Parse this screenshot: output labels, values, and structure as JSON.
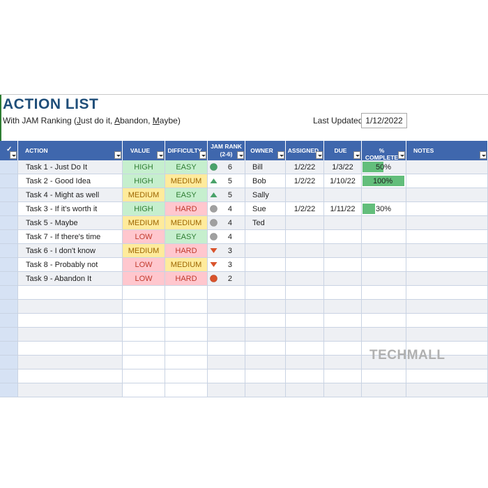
{
  "title": "ACTION LIST",
  "subtitle": {
    "prefix": "With JAM Ranking (",
    "j": "J",
    "just": "ust do it, ",
    "a": "A",
    "abandon": "bandon, ",
    "m": "M",
    "maybe": "aybe)"
  },
  "last_updated": {
    "label": "Last Updated:",
    "value": "1/12/2022"
  },
  "headers": {
    "action": "ACTION",
    "value": "VALUE",
    "difficulty": "DIFFICULTY",
    "jam_rank_1": "JAM RANK",
    "jam_rank_2": "(2-6)",
    "owner": "OWNER",
    "assigned": "ASSIGNED",
    "due": "DUE",
    "complete": "% COMPLETE",
    "notes": "NOTES"
  },
  "rows": [
    {
      "action": "Task 1 - Just Do It",
      "value": "HIGH",
      "difficulty": "EASY",
      "rank_icon": "green-circle-icon",
      "rank": "6",
      "owner": "Bill",
      "assigned": "1/2/22",
      "due": "1/3/22",
      "complete_fraction": 0.5,
      "complete": "50%"
    },
    {
      "action": "Task 2 - Good Idea",
      "value": "HIGH",
      "difficulty": "MEDIUM",
      "rank_icon": "green-up-triangle-icon",
      "rank": "5",
      "owner": "Bob",
      "assigned": "1/2/22",
      "due": "1/10/22",
      "complete_fraction": 1.0,
      "complete": "100%"
    },
    {
      "action": "Task 4 - Might as well",
      "value": "MEDIUM",
      "difficulty": "EASY",
      "rank_icon": "green-up-triangle-icon",
      "rank": "5",
      "owner": "Sally",
      "assigned": "",
      "due": "",
      "complete_fraction": null,
      "complete": ""
    },
    {
      "action": "Task 3 - If it's worth it",
      "value": "HIGH",
      "difficulty": "HARD",
      "rank_icon": "gray-circle-icon",
      "rank": "4",
      "owner": "Sue",
      "assigned": "1/2/22",
      "due": "1/11/22",
      "complete_fraction": 0.3,
      "complete": "30%"
    },
    {
      "action": "Task 5 - Maybe",
      "value": "MEDIUM",
      "difficulty": "MEDIUM",
      "rank_icon": "gray-circle-icon",
      "rank": "4",
      "owner": "Ted",
      "assigned": "",
      "due": "",
      "complete_fraction": null,
      "complete": ""
    },
    {
      "action": "Task 7 - If there's time",
      "value": "LOW",
      "difficulty": "EASY",
      "rank_icon": "gray-circle-icon",
      "rank": "4",
      "owner": "",
      "assigned": "",
      "due": "",
      "complete_fraction": null,
      "complete": ""
    },
    {
      "action": "Task 6 - I don't know",
      "value": "MEDIUM",
      "difficulty": "HARD",
      "rank_icon": "red-down-triangle-icon",
      "rank": "3",
      "owner": "",
      "assigned": "",
      "due": "",
      "complete_fraction": null,
      "complete": ""
    },
    {
      "action": "Task 8 - Probably not",
      "value": "LOW",
      "difficulty": "MEDIUM",
      "rank_icon": "red-down-triangle-icon",
      "rank": "3",
      "owner": "",
      "assigned": "",
      "due": "",
      "complete_fraction": null,
      "complete": ""
    },
    {
      "action": "Task 9 - Abandon It",
      "value": "LOW",
      "difficulty": "HARD",
      "rank_icon": "red-circle-icon",
      "rank": "2",
      "owner": "",
      "assigned": "",
      "due": "",
      "complete_fraction": null,
      "complete": ""
    }
  ],
  "empty_rows": 8,
  "watermark": "TECHMALL",
  "colors": {
    "header_bg": "#3f67ad",
    "title": "#1f4e79",
    "icon_green": "#4aa26a",
    "icon_gray": "#a0a0a0",
    "icon_red": "#d9532c",
    "bar": "#63be7b"
  }
}
